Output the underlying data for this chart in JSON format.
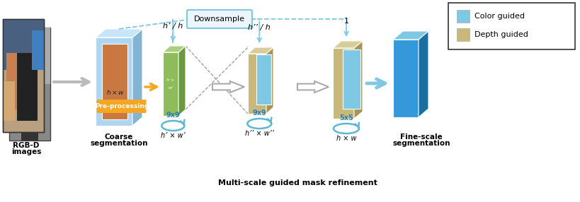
{
  "bg_color": "#ffffff",
  "light_blue": "#7EC8E3",
  "mid_blue": "#5BB8D4",
  "sky_blue": "#AED6F1",
  "deep_blue": "#2980B9",
  "green_face": "#8FBC5A",
  "green_side": "#6A9940",
  "green_top": "#AACF7A",
  "tan_face": "#C8B87A",
  "tan_side": "#A89555",
  "tan_top": "#D8CC9A",
  "blue_face": "#7EC8E3",
  "blue_side": "#5AABCC",
  "blue_top": "#AED6F1",
  "coarse_blue_face": "#AED6F1",
  "coarse_blue_side": "#82B4D4",
  "coarse_blue_top": "#C8E4F8",
  "brown_face": "#C87840",
  "brown_side": "#A05A28",
  "brown_top": "#D89860",
  "final_blue_face": "#3498DB",
  "final_blue_side": "#1A6FA0",
  "final_blue_top": "#7EC8E3",
  "arrow_gray": "#AAAAAA",
  "arrow_orange": "#F5A623",
  "dashed_color": "#7EC8E3",
  "dark_gray_dash": "#999999",
  "preproc_bg": "#F5A623",
  "downsample_bg": "#EBF5FB",
  "downsample_border": "#7EC8E3",
  "labels": {
    "rgb_d_line1": "RGB-D",
    "rgb_d_line2": "images",
    "coarse_line1": "Coarse",
    "coarse_line2": "segmentation",
    "multiscale": "Multi-scale guided mask refinement",
    "fine_line1": "Fine-scale",
    "fine_line2": "segmentation",
    "downsample": "Downsample",
    "preproc": "Pre-processing",
    "hprime_h": "h’ / h",
    "hdprime_h": "h’’ / h",
    "one": "1",
    "hprime_wprime": "h’ × w’",
    "hdprime_wdprime": "h’’ × w’’",
    "hw": "h × w",
    "hw_panel": "h × w",
    "nine_nine_1": "9x9",
    "nine_nine_2": "9x9",
    "five_five": "5x5",
    "color_guided": "Color guided",
    "depth_guided": "Depth guided"
  }
}
